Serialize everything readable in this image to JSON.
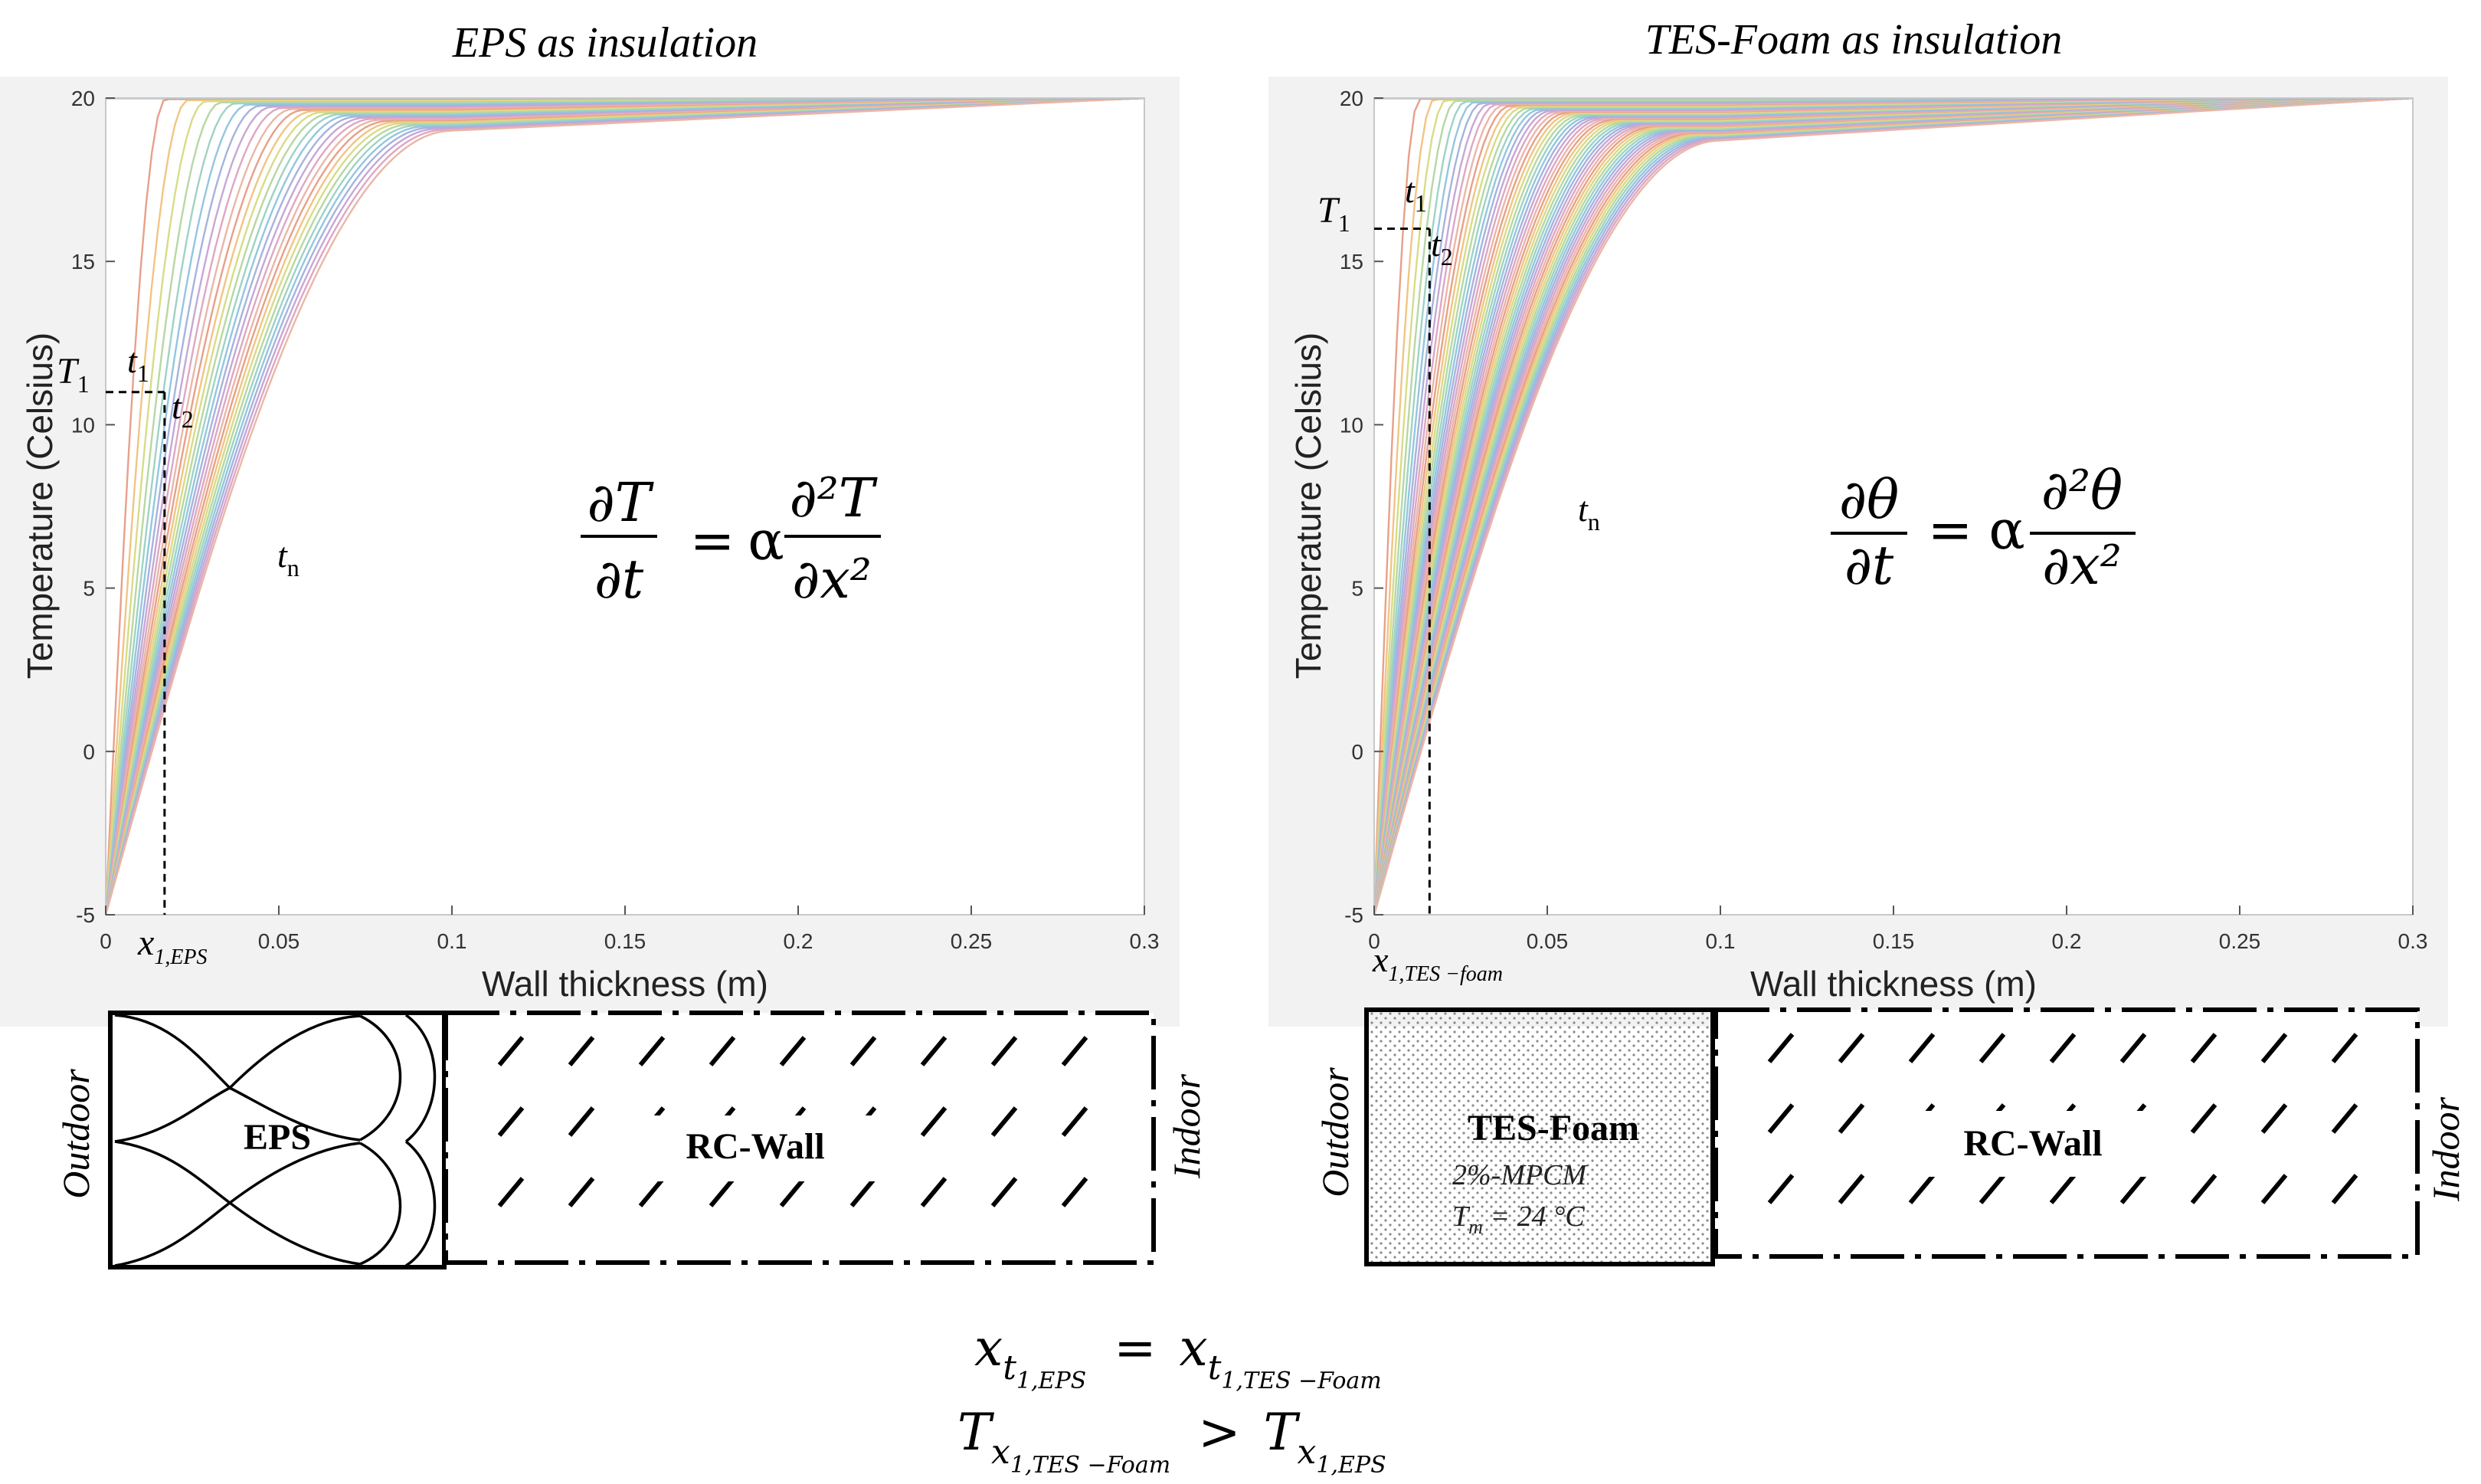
{
  "figure": {
    "bottom_equation": {
      "line1": {
        "lhs": "x",
        "lhs_sub": "t",
        "lhs_subsub": "1,EPS",
        "eq": "=",
        "rhs": "x",
        "rhs_sub": "t",
        "rhs_subsub": "1,TES −Foam"
      },
      "line2": {
        "lhs": "T",
        "lhs_sub": "x",
        "lhs_subsub": "1,TES −Foam",
        "op": ">",
        "rhs": "T",
        "rhs_sub": "x",
        "rhs_subsub": "1,EPS"
      }
    }
  },
  "chart_data": [
    {
      "type": "line",
      "title": "EPS as insulation",
      "xlabel": "Wall thickness (m)",
      "ylabel": "Temperature (Celsius)",
      "xlim": [
        0,
        0.3
      ],
      "ylim": [
        -5,
        20
      ],
      "xticks": [
        "0",
        "0.05",
        "0.1",
        "0.15",
        "0.2",
        "0.25",
        "0.3"
      ],
      "yticks": [
        "-5",
        "0",
        "5",
        "10",
        "15",
        "20"
      ],
      "grid": false,
      "outdoor_temp": -5,
      "initial_temp": 20,
      "insulation_end_x": 0.1,
      "interface_temp_final": 19.0,
      "indoor_temp": 20,
      "curve_count": 30,
      "spread": 0.6,
      "equation": {
        "lhs_num": "∂T",
        "lhs_den": "∂t",
        "equals": "=",
        "coef": "α",
        "rhs_num": "∂²T",
        "rhs_den": "∂x²"
      },
      "annotations": {
        "T1": {
          "label": "T",
          "sub": "1",
          "value": 11
        },
        "t1": {
          "label": "t",
          "sub": "1"
        },
        "t2": {
          "label": "t",
          "sub": "2"
        },
        "tn": {
          "label": "t",
          "sub": "n"
        },
        "x1": {
          "label": "x",
          "sub": "1,EPS",
          "value": 0.017
        }
      },
      "wall": {
        "outdoor_label": "Outdoor",
        "insulation_label": "EPS",
        "wall_label": "RC-Wall",
        "indoor_label": "Indoor"
      }
    },
    {
      "type": "line",
      "title": "TES-Foam as insulation",
      "xlabel": "Wall thickness (m)",
      "ylabel": "Temperature (Celsius)",
      "xlim": [
        0,
        0.3
      ],
      "ylim": [
        -5,
        20
      ],
      "xticks": [
        "0",
        "0.05",
        "0.1",
        "0.15",
        "0.2",
        "0.25",
        "0.3"
      ],
      "yticks": [
        "-5",
        "0",
        "5",
        "10",
        "15",
        "20"
      ],
      "grid": false,
      "outdoor_temp": -5,
      "initial_temp": 20,
      "insulation_end_x": 0.1,
      "interface_temp_final": 18.7,
      "indoor_temp": 20,
      "curve_count": 60,
      "spread": 0.6,
      "equation": {
        "lhs_num": "∂θ",
        "lhs_den": "∂t",
        "equals": "=",
        "coef": "α",
        "rhs_num": "∂²θ",
        "rhs_den": "∂x²"
      },
      "annotations": {
        "T1": {
          "label": "T",
          "sub": "1",
          "value": 16
        },
        "t1": {
          "label": "t",
          "sub": "1"
        },
        "t2": {
          "label": "t",
          "sub": "2"
        },
        "tn": {
          "label": "t",
          "sub": "n"
        },
        "x1": {
          "label": "x",
          "sub": "1,TES −foam",
          "value": 0.016
        }
      },
      "wall": {
        "outdoor_label": "Outdoor",
        "insulation_label": "TES-Foam",
        "insulation_sub1": "2%-MPCM",
        "insulation_sub2_main": "T",
        "insulation_sub2_sub": "m",
        "insulation_sub2_rest": " = 24 °C",
        "wall_label": "RC-Wall",
        "indoor_label": "Indoor"
      }
    }
  ]
}
